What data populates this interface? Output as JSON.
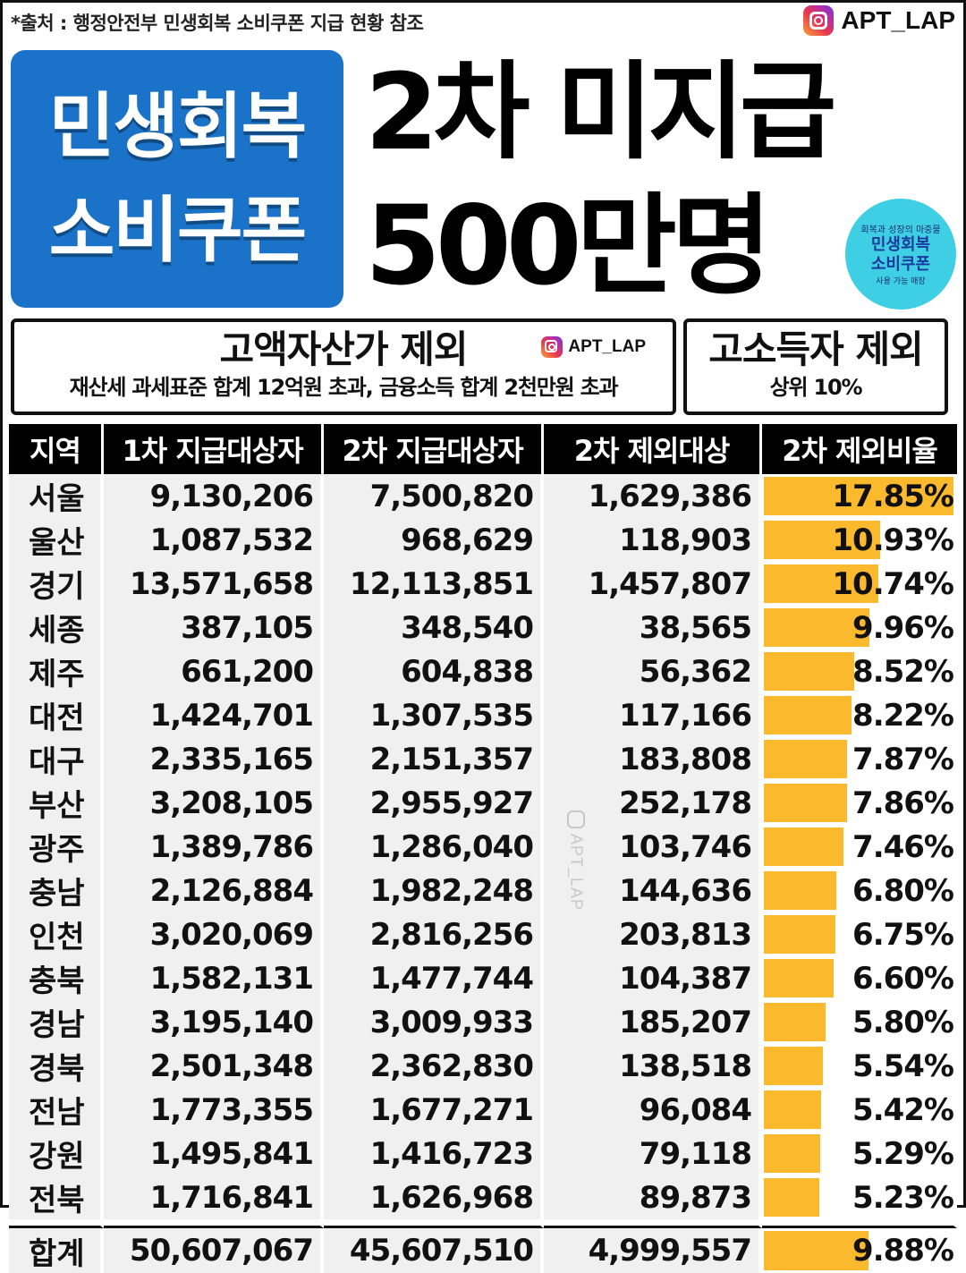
{
  "source_note": "*출처 : 행정안전부 민생회복 소비쿠폰 지급 현황 참조",
  "handle": "APT_LAP",
  "blue_title": [
    "민생회복",
    "소비쿠폰"
  ],
  "headline": {
    "line1": "2차 미지급",
    "line2": "500만명"
  },
  "badge": {
    "top": "회복과 성장의 마중물",
    "line1": "민생회복",
    "line2": "소비쿠폰",
    "bottom": "사용 가능 매장"
  },
  "exclusion1": {
    "title": "고액자산가 제외",
    "desc": "재산세 과세표준 합계 12억원 초과, 금융소득 합계 2천만원 초과"
  },
  "exclusion2": {
    "title": "고소득자 제외",
    "desc": "상위 10%"
  },
  "table": {
    "headers": [
      "지역",
      "1차 지급대상자",
      "2차 지급대상자",
      "2차 제외대상",
      "2차 제외비율"
    ],
    "rows": [
      {
        "region": "서울",
        "first": "9,130,206",
        "second": "7,500,820",
        "excluded": "1,629,386",
        "rate": "17.85%",
        "rate_value": 17.85
      },
      {
        "region": "울산",
        "first": "1,087,532",
        "second": "968,629",
        "excluded": "118,903",
        "rate": "10.93%",
        "rate_value": 10.93
      },
      {
        "region": "경기",
        "first": "13,571,658",
        "second": "12,113,851",
        "excluded": "1,457,807",
        "rate": "10.74%",
        "rate_value": 10.74
      },
      {
        "region": "세종",
        "first": "387,105",
        "second": "348,540",
        "excluded": "38,565",
        "rate": "9.96%",
        "rate_value": 9.96
      },
      {
        "region": "제주",
        "first": "661,200",
        "second": "604,838",
        "excluded": "56,362",
        "rate": "8.52%",
        "rate_value": 8.52
      },
      {
        "region": "대전",
        "first": "1,424,701",
        "second": "1,307,535",
        "excluded": "117,166",
        "rate": "8.22%",
        "rate_value": 8.22
      },
      {
        "region": "대구",
        "first": "2,335,165",
        "second": "2,151,357",
        "excluded": "183,808",
        "rate": "7.87%",
        "rate_value": 7.87
      },
      {
        "region": "부산",
        "first": "3,208,105",
        "second": "2,955,927",
        "excluded": "252,178",
        "rate": "7.86%",
        "rate_value": 7.86
      },
      {
        "region": "광주",
        "first": "1,389,786",
        "second": "1,286,040",
        "excluded": "103,746",
        "rate": "7.46%",
        "rate_value": 7.46
      },
      {
        "region": "충남",
        "first": "2,126,884",
        "second": "1,982,248",
        "excluded": "144,636",
        "rate": "6.80%",
        "rate_value": 6.8
      },
      {
        "region": "인천",
        "first": "3,020,069",
        "second": "2,816,256",
        "excluded": "203,813",
        "rate": "6.75%",
        "rate_value": 6.75
      },
      {
        "region": "충북",
        "first": "1,582,131",
        "second": "1,477,744",
        "excluded": "104,387",
        "rate": "6.60%",
        "rate_value": 6.6
      },
      {
        "region": "경남",
        "first": "3,195,140",
        "second": "3,009,933",
        "excluded": "185,207",
        "rate": "5.80%",
        "rate_value": 5.8
      },
      {
        "region": "경북",
        "first": "2,501,348",
        "second": "2,362,830",
        "excluded": "138,518",
        "rate": "5.54%",
        "rate_value": 5.54
      },
      {
        "region": "전남",
        "first": "1,773,355",
        "second": "1,677,271",
        "excluded": "96,084",
        "rate": "5.42%",
        "rate_value": 5.42
      },
      {
        "region": "강원",
        "first": "1,495,841",
        "second": "1,416,723",
        "excluded": "79,118",
        "rate": "5.29%",
        "rate_value": 5.29
      },
      {
        "region": "전북",
        "first": "1,716,841",
        "second": "1,626,968",
        "excluded": "89,873",
        "rate": "5.23%",
        "rate_value": 5.23
      }
    ],
    "total": {
      "region": "합계",
      "first": "50,607,067",
      "second": "45,607,510",
      "excluded": "4,999,557",
      "rate": "9.88%",
      "rate_value": 9.88
    }
  },
  "colors": {
    "blue": "#1a73c9",
    "bar": "#fbb92e",
    "header_bg": "#000000",
    "badge": "#3fcfe5"
  }
}
